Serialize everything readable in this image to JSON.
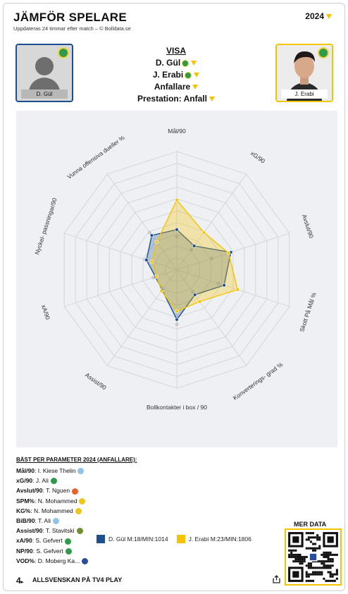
{
  "header": {
    "title": "JÄMFÖR SPELARE",
    "subtitle": "Uppdateras 24 timmar efter match – © Bolldata.se",
    "year": "2024"
  },
  "players": {
    "left": {
      "name": "D. Gül",
      "color": "#1d4f8f"
    },
    "right": {
      "name": "J. Erabi",
      "color": "#f5c400"
    }
  },
  "visa": {
    "heading": "VISA",
    "player1": "D. Gül",
    "player2": "J. Erabi",
    "position": "Anfallare",
    "prestation": "Prestation: Anfall"
  },
  "chart_data": {
    "type": "radar",
    "axes": [
      "Mål/90",
      "xG/90",
      "Avslut/90",
      "Skott På Mål %",
      "Konverterings- grad %",
      "Bollkontakter i box / 90",
      "Assist/90",
      "xA/90",
      "Nyckel- passningar/90",
      "Vunna offensiva dueller %"
    ],
    "rmax": 10,
    "series": [
      {
        "name": "D. Gül M:18/MIN:1014",
        "values": [
          3.4,
          2.5,
          4.8,
          4.2,
          2.6,
          4.2,
          2.1,
          1.9,
          2.7,
          3.6
        ]
      },
      {
        "name": "J. Erabi M:23/MIN:1806",
        "values": [
          5.9,
          3.9,
          4.6,
          5.4,
          3.3,
          3.5,
          2.2,
          1.8,
          2.2,
          2.9
        ]
      }
    ],
    "league_average": [
      2.8,
      2.1,
      3.1,
      3.7,
      2.3,
      4.6,
      2.0,
      2.1,
      2.8,
      3.9
    ]
  },
  "best": {
    "title": "BÄST PER PARAMETER 2024 (ANFALLARE):",
    "rows": [
      {
        "label": "Mål/90",
        "player": "I. Kiese Thelin",
        "club_color": "#8fc3ea"
      },
      {
        "label": "xG/90",
        "player": "J. Ali",
        "club_color": "#2e9a4c"
      },
      {
        "label": "Avslut/90",
        "player": "T. Nguen",
        "club_color": "#e8632a"
      },
      {
        "label": "SPM%",
        "player": "N. Mohammed",
        "club_color": "#f0c419"
      },
      {
        "label": "KG%",
        "player": "N. Mohammed",
        "club_color": "#f0c419"
      },
      {
        "label": "BiB/90",
        "player": "T. Ali",
        "club_color": "#8fc3ea"
      },
      {
        "label": "Assist/90",
        "player": "T. Stavitski",
        "club_color": "#6d8f2e"
      },
      {
        "label": "xA/90",
        "player": "S. Gefvert",
        "club_color": "#2e9a4c"
      },
      {
        "label": "NP/90",
        "player": "S. Gefvert",
        "club_color": "#2e9a4c"
      },
      {
        "label": "VOD%",
        "player": "D. Moberg Ka...",
        "club_color": "#2a4d9b"
      }
    ]
  },
  "mer_data": "MER DATA",
  "footer": {
    "number": "4",
    "text": "ALLSVENSKAN PÅ TV4 PLAY"
  }
}
